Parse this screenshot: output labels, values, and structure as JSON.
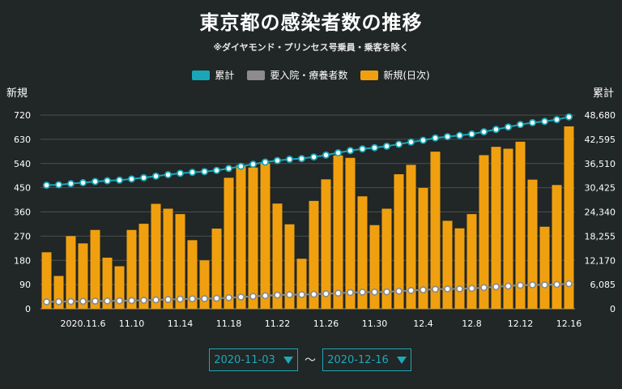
{
  "title": "東京都の感染者数の推移",
  "subtitle": "※ダイヤモンド・プリンセス号乗員・乗客を除く",
  "legend": [
    {
      "label": "累計",
      "color": "#17a7b8"
    },
    {
      "label": "要入院・療養者数",
      "color": "#8c8c8c"
    },
    {
      "label": "新規(日次)",
      "color": "#f0a00f"
    }
  ],
  "left_axis_title": "新規",
  "right_axis_title": "累計",
  "date_range": {
    "start": "2020-11-03",
    "end": "2020-12-16",
    "separator": "〜"
  },
  "chart_data": {
    "type": "bar",
    "categories": [
      "11.3",
      "11.4",
      "11.5",
      "11.6",
      "11.7",
      "11.8",
      "11.9",
      "11.10",
      "11.11",
      "11.12",
      "11.13",
      "11.14",
      "11.15",
      "11.16",
      "11.17",
      "11.18",
      "11.19",
      "11.20",
      "11.21",
      "11.22",
      "11.23",
      "11.24",
      "11.25",
      "11.26",
      "11.27",
      "11.28",
      "11.29",
      "11.30",
      "12.1",
      "12.2",
      "12.3",
      "12.4",
      "12.5",
      "12.6",
      "12.7",
      "12.8",
      "12.9",
      "12.10",
      "12.11",
      "12.12",
      "12.13",
      "12.14",
      "12.15",
      "12.16"
    ],
    "x_tick_labels": [
      "2020.11.6",
      "11.10",
      "11.14",
      "11.18",
      "11.22",
      "11.26",
      "11.30",
      "12.4",
      "12.8",
      "12.12",
      "12.16"
    ],
    "x_tick_indices": [
      3,
      7,
      11,
      15,
      19,
      23,
      27,
      31,
      35,
      39,
      43
    ],
    "left_axis": {
      "ticks": [
        "0",
        "90",
        "180",
        "270",
        "360",
        "450",
        "540",
        "630",
        "720"
      ],
      "ylim": [
        0,
        720
      ]
    },
    "right_axis": {
      "ticks": [
        "0",
        "6,085",
        "12,170",
        "18,255",
        "24,340",
        "30,425",
        "36,510",
        "42,595",
        "48,680"
      ],
      "ylim": [
        0,
        48680
      ]
    },
    "series": [
      {
        "name": "新規(日次)",
        "type": "bar",
        "axis": "left",
        "values": [
          210,
          122,
          270,
          243,
          293,
          190,
          158,
          293,
          316,
          390,
          372,
          352,
          255,
          180,
          298,
          487,
          534,
          525,
          540,
          391,
          314,
          186,
          401,
          481,
          570,
          561,
          418,
          311,
          372,
          500,
          535,
          449,
          584,
          327,
          299,
          352,
          571,
          602,
          595,
          621,
          480,
          305,
          460,
          678
        ]
      },
      {
        "name": "累計",
        "type": "line",
        "axis": "right",
        "values": [
          31050,
          31170,
          31440,
          31690,
          31980,
          32170,
          32330,
          32620,
          32940,
          33330,
          33700,
          34050,
          34300,
          34480,
          34780,
          35260,
          35800,
          36320,
          36860,
          37250,
          37570,
          37750,
          38150,
          38630,
          39200,
          39760,
          40180,
          40490,
          40860,
          41360,
          41900,
          42350,
          42930,
          43260,
          43560,
          43910,
          44480,
          45080,
          45680,
          46300,
          46780,
          47090,
          47550,
          48230
        ]
      },
      {
        "name": "要入院・療養者数",
        "type": "line",
        "axis": "right",
        "values": [
          1750,
          1780,
          1830,
          1880,
          1920,
          1960,
          2000,
          2060,
          2130,
          2240,
          2330,
          2430,
          2500,
          2540,
          2630,
          2780,
          2950,
          3120,
          3290,
          3440,
          3540,
          3560,
          3640,
          3780,
          3930,
          4080,
          4180,
          4200,
          4270,
          4430,
          4590,
          4750,
          4910,
          4980,
          5000,
          5120,
          5330,
          5520,
          5700,
          5900,
          6010,
          6000,
          6110,
          6300
        ]
      }
    ],
    "grid": true
  }
}
